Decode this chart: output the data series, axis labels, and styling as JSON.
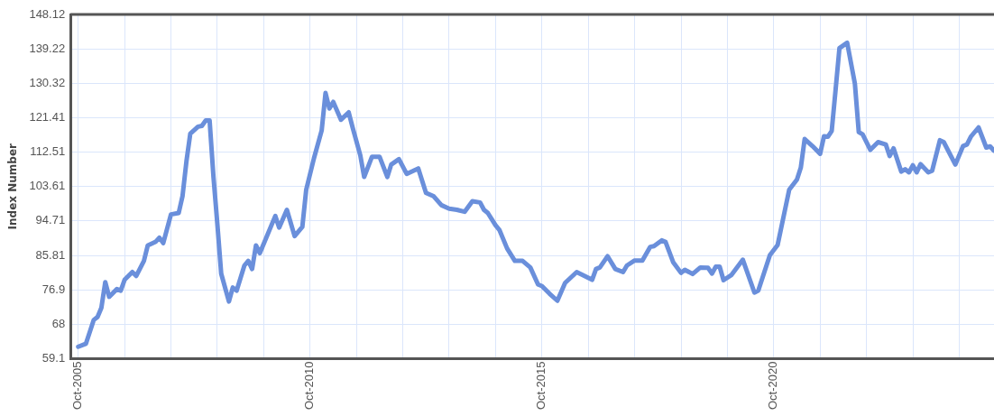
{
  "chart_data": {
    "type": "line",
    "ylabel": "Index Number",
    "x": [
      "2005-10",
      "2005-12",
      "2006-02",
      "2006-03",
      "2006-04",
      "2006-05",
      "2006-06",
      "2006-08",
      "2006-09",
      "2006-10",
      "2006-12",
      "2007-01",
      "2007-03",
      "2007-04",
      "2007-06",
      "2007-07",
      "2007-08",
      "2007-10",
      "2007-12",
      "2008-01",
      "2008-02",
      "2008-03",
      "2008-05",
      "2008-06",
      "2008-07",
      "2008-08",
      "2008-09",
      "2008-10",
      "2008-11",
      "2009-01",
      "2009-02",
      "2009-03",
      "2009-05",
      "2009-06",
      "2009-07",
      "2009-08",
      "2009-09",
      "2010-01",
      "2010-02",
      "2010-04",
      "2010-06",
      "2010-08",
      "2010-09",
      "2010-11",
      "2011-01",
      "2011-02",
      "2011-03",
      "2011-04",
      "2011-06",
      "2011-08",
      "2011-09",
      "2011-11",
      "2011-12",
      "2012-02",
      "2012-04",
      "2012-06",
      "2012-07",
      "2012-09",
      "2012-11",
      "2013-02",
      "2013-04",
      "2013-06",
      "2013-08",
      "2013-10",
      "2013-12",
      "2014-02",
      "2014-04",
      "2014-06",
      "2014-07",
      "2014-08",
      "2014-10",
      "2014-11",
      "2015-01",
      "2015-03",
      "2015-05",
      "2015-07",
      "2015-09",
      "2015-10",
      "2015-12",
      "2016-02",
      "2016-04",
      "2016-07",
      "2016-09",
      "2016-11",
      "2016-12",
      "2017-01",
      "2017-03",
      "2017-05",
      "2017-07",
      "2017-08",
      "2017-10",
      "2017-12",
      "2018-02",
      "2018-03",
      "2018-05",
      "2018-06",
      "2018-08",
      "2018-10",
      "2018-11",
      "2019-01",
      "2019-03",
      "2019-05",
      "2019-06",
      "2019-07",
      "2019-08",
      "2019-09",
      "2019-11",
      "2020-02",
      "2020-05",
      "2020-06",
      "2020-09",
      "2020-11",
      "2021-02",
      "2021-04",
      "2021-05",
      "2021-06",
      "2021-08",
      "2021-10",
      "2021-11",
      "2021-12",
      "2022-01",
      "2022-02",
      "2022-03",
      "2022-05",
      "2022-07",
      "2022-08",
      "2022-09",
      "2022-11",
      "2023-01",
      "2023-03",
      "2023-04",
      "2023-05",
      "2023-07",
      "2023-08",
      "2023-09",
      "2023-10",
      "2023-11",
      "2023-12",
      "2024-02",
      "2024-03",
      "2024-05",
      "2024-06",
      "2024-09",
      "2024-11",
      "2024-12",
      "2025-01",
      "2025-03",
      "2025-05",
      "2025-06",
      "2025-07"
    ],
    "series": [
      {
        "color": "#6a8fdb",
        "values": [
          62.2,
          63.0,
          69.1,
          69.9,
          72.3,
          78.9,
          75.1,
          77.1,
          76.7,
          79.5,
          81.5,
          80.5,
          84.4,
          88.4,
          89.3,
          90.4,
          89.0,
          96.4,
          96.8,
          101.2,
          110.1,
          117.3,
          119.1,
          119.3,
          120.7,
          120.7,
          106.1,
          94.0,
          81.1,
          73.9,
          77.5,
          76.7,
          83.2,
          84.4,
          82.3,
          88.4,
          86.4,
          96.0,
          93.0,
          97.6,
          90.8,
          93.2,
          102.8,
          110.9,
          118.1,
          127.8,
          123.8,
          125.5,
          120.9,
          122.8,
          118.9,
          111.7,
          106.1,
          111.3,
          111.3,
          106.1,
          109.3,
          110.7,
          106.9,
          108.3,
          102.0,
          101.1,
          98.8,
          97.9,
          97.6,
          97.1,
          99.8,
          99.5,
          97.6,
          96.8,
          93.6,
          92.4,
          87.6,
          84.4,
          84.4,
          82.7,
          78.3,
          77.9,
          75.9,
          74.1,
          78.7,
          81.5,
          80.5,
          79.5,
          82.3,
          82.7,
          85.6,
          82.3,
          81.5,
          83.2,
          84.5,
          84.5,
          88.0,
          88.2,
          89.7,
          89.3,
          84.0,
          81.3,
          82.1,
          81.0,
          82.7,
          82.6,
          81.1,
          82.9,
          82.9,
          79.4,
          80.7,
          84.7,
          76.2,
          76.7,
          85.9,
          88.5,
          102.8,
          105.4,
          108.5,
          115.9,
          114.1,
          112.1,
          116.6,
          116.5,
          118.0,
          128.6,
          139.4,
          140.8,
          130.2,
          117.7,
          117.1,
          113.1,
          115.1,
          114.5,
          111.5,
          113.5,
          107.5,
          108.1,
          107.3,
          109.1,
          107.3,
          109.4,
          107.3,
          107.7,
          115.6,
          115.1,
          109.3,
          114.1,
          114.5,
          116.5,
          118.9,
          113.7,
          114.0,
          112.9
        ]
      }
    ],
    "xlim": [
      "2005-08",
      "2025-07"
    ],
    "xticks": [
      {
        "value": "2005-10",
        "label": "Oct-2005"
      },
      {
        "value": "2006-10",
        "label": null
      },
      {
        "value": "2007-10",
        "label": null
      },
      {
        "value": "2008-10",
        "label": null
      },
      {
        "value": "2009-10",
        "label": null
      },
      {
        "value": "2010-10",
        "label": "Oct-2010"
      },
      {
        "value": "2011-10",
        "label": null
      },
      {
        "value": "2012-10",
        "label": null
      },
      {
        "value": "2013-10",
        "label": null
      },
      {
        "value": "2014-10",
        "label": null
      },
      {
        "value": "2015-10",
        "label": "Oct-2015"
      },
      {
        "value": "2016-10",
        "label": null
      },
      {
        "value": "2017-10",
        "label": null
      },
      {
        "value": "2018-10",
        "label": null
      },
      {
        "value": "2019-10",
        "label": null
      },
      {
        "value": "2020-10",
        "label": "Oct-2020"
      },
      {
        "value": "2021-10",
        "label": null
      },
      {
        "value": "2022-10",
        "label": null
      },
      {
        "value": "2023-10",
        "label": null
      },
      {
        "value": "2024-10",
        "label": null
      }
    ],
    "ylim": [
      59.1,
      148.12
    ],
    "yticks": [
      59.1,
      68,
      76.9,
      85.81,
      94.71,
      103.61,
      112.51,
      121.41,
      130.32,
      139.22,
      148.12
    ],
    "grid": true,
    "legend": false,
    "marker": "none",
    "line_style": "solid"
  }
}
